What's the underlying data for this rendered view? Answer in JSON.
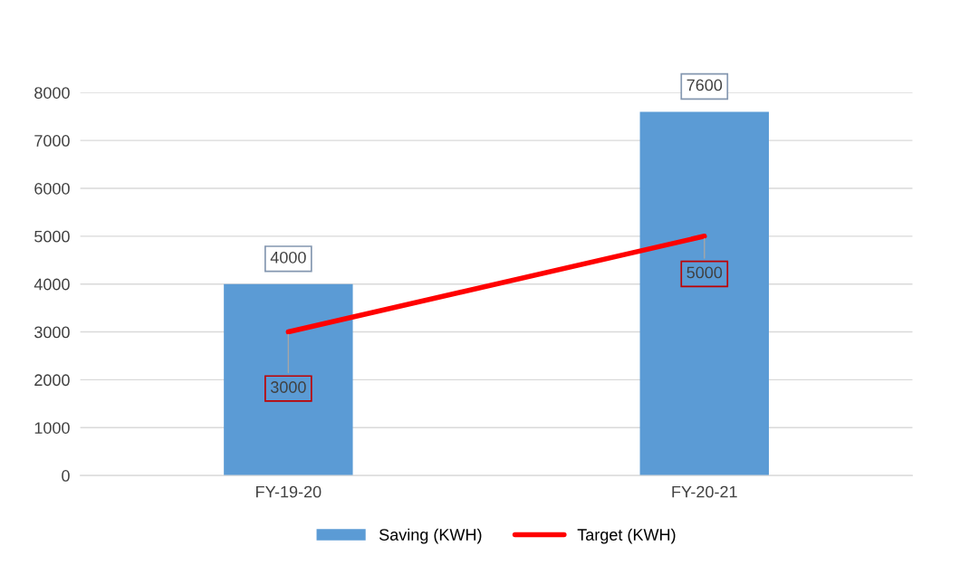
{
  "chart_data": {
    "type": "bar",
    "categories": [
      "FY-19-20",
      "FY-20-21"
    ],
    "series": [
      {
        "name": "Saving (KWH)",
        "color": "#5b9bd5",
        "values": [
          4000,
          7600
        ]
      },
      {
        "name": "Target (KWH)",
        "type": "line",
        "color": "#ff0000",
        "values": [
          3000,
          5000
        ]
      }
    ],
    "ylim": [
      0,
      8000
    ],
    "yticks": [
      0,
      1000,
      2000,
      3000,
      4000,
      5000,
      6000,
      7000,
      8000
    ],
    "grid": "y",
    "legend": "bottom",
    "marker": "none",
    "line_style": "solid",
    "data_labels": true
  }
}
